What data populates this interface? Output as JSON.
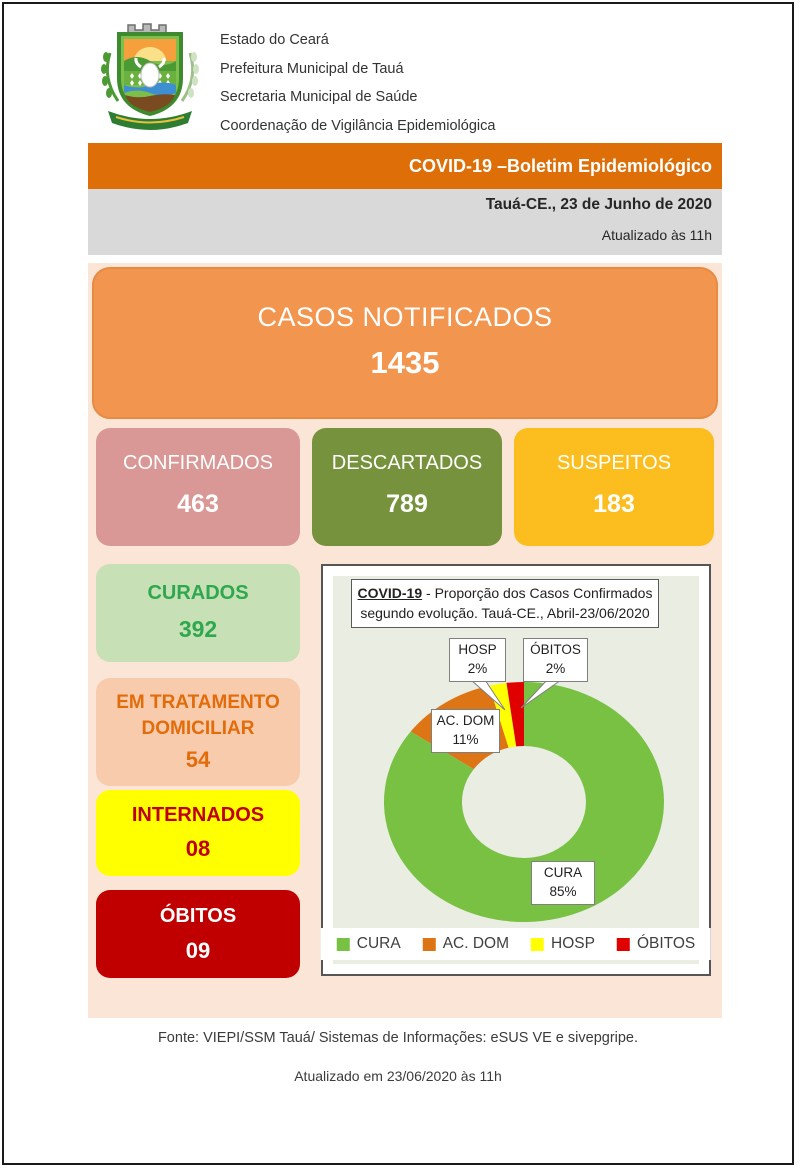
{
  "header": {
    "org_lines": [
      "Estado do Ceará",
      "Prefeitura Municipal de Tauá",
      "Secretaria Municipal de Saúde",
      "Coordenação de Vigilância Epidemiológica"
    ]
  },
  "banner": {
    "title": "COVID-19 –Boletim Epidemiológico"
  },
  "subheader": {
    "date_line": "Tauá-CE., 23 de Junho de 2020",
    "updated_line": "Atualizado às 11h"
  },
  "notified": {
    "label": "CASOS NOTIFICADOS",
    "value": "1435"
  },
  "summary_boxes": [
    {
      "label": "CONFIRMADOS",
      "value": "463",
      "bg": "#D99795"
    },
    {
      "label": "DESCARTADOS",
      "value": "789",
      "bg": "#77923C"
    },
    {
      "label": "SUSPEITOS",
      "value": "183",
      "bg": "#FBBE1E"
    }
  ],
  "status_boxes": [
    {
      "label": "CURADOS",
      "value": "392",
      "bg": "#C8E0B6",
      "fg": "#2EA84E"
    },
    {
      "label": "EM TRATAMENTO DOMICILIAR",
      "value": "54",
      "bg": "#F8CBAD",
      "fg": "#E36C0A"
    },
    {
      "label": "INTERNADOS",
      "value": "08",
      "bg": "#FFFF00",
      "fg": "#C00000"
    },
    {
      "label": "ÓBITOS",
      "value": "09",
      "bg": "#C00000",
      "fg": "#FFFFFF"
    }
  ],
  "chart_data": {
    "type": "pie",
    "subtype": "donut",
    "title_emphasis": "COVID-19",
    "title_rest": " - Proporção dos Casos Confirmados segundo evolução. Tauá-CE., Abril-23/06/2020",
    "categories": [
      "CURA",
      "AC. DOM",
      "HOSP",
      "ÓBITOS"
    ],
    "values": [
      85,
      11,
      2,
      2
    ],
    "unit": "%",
    "colors": [
      "#79C143",
      "#DE7514",
      "#FFFF00",
      "#E10000"
    ],
    "start_angle_deg": 0,
    "direction": "clockwise",
    "legend_position": "bottom",
    "callouts": [
      {
        "category": "HOSP",
        "name": "HOSP",
        "pct": "2%"
      },
      {
        "category": "ÓBITOS",
        "name": "ÓBITOS",
        "pct": "2%"
      },
      {
        "category": "AC. DOM",
        "name": "AC. DOM",
        "pct": "11%"
      },
      {
        "category": "CURA",
        "name": "CURA",
        "pct": "85%"
      }
    ]
  },
  "footer": {
    "source_line": "Fonte: VIEPI/SSM Tauá/ Sistemas de Informações: eSUS VE e sivepgripe.",
    "updated_line": "Atualizado em 23/06/2020 às 11h"
  },
  "colors": {
    "banner_orange": "#DE6F08",
    "subheader_gray": "#D9D9D9",
    "panel_peach": "#FBE5D6",
    "notified_orange": "#F2964F",
    "chart_bg_sage": "#E9EDE2",
    "alert_red": "#C00000",
    "alert_yellow": "#FFFF00"
  }
}
